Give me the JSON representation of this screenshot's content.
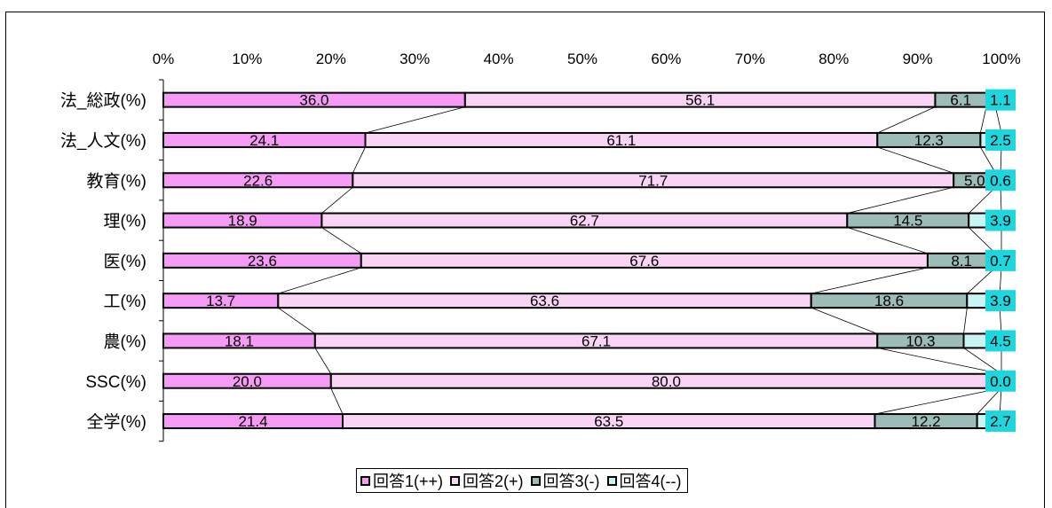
{
  "chart_data": {
    "type": "bar",
    "orientation": "horizontal",
    "stacked": "percent",
    "x_tick_labels": [
      "0%",
      "10%",
      "20%",
      "30%",
      "40%",
      "50%",
      "60%",
      "70%",
      "80%",
      "90%",
      "100%"
    ],
    "xlim": [
      0,
      100
    ],
    "categories": [
      "法_総政(%)",
      "法_人文(%)",
      "教育(%)",
      "理(%)",
      "医(%)",
      "工(%)",
      "農(%)",
      "SSC(%)",
      "全学(%)"
    ],
    "series": [
      {
        "name": "回答1(++)",
        "color": "#f59af5",
        "values": [
          36.0,
          24.1,
          22.6,
          18.9,
          23.6,
          13.7,
          18.1,
          20.0,
          21.4
        ],
        "labels": [
          "36.0",
          "24.1",
          "22.6",
          "18.9",
          "23.6",
          "13.7",
          "18.1",
          "20.0",
          "21.4"
        ]
      },
      {
        "name": "回答2(+)",
        "color": "#fad4f5",
        "values": [
          56.1,
          61.1,
          71.7,
          62.7,
          67.6,
          63.6,
          67.1,
          80.0,
          63.5
        ],
        "labels": [
          "56.1",
          "61.1",
          "71.7",
          "62.7",
          "67.6",
          "63.6",
          "67.1",
          "80.0",
          "63.5"
        ]
      },
      {
        "name": "回答3(-)",
        "color": "#9cbcb8",
        "values": [
          6.1,
          12.3,
          5.0,
          14.5,
          8.1,
          18.6,
          10.3,
          0.0,
          12.2
        ],
        "labels": [
          "6.1",
          "12.3",
          "5.0",
          "14.5",
          "8.1",
          "18.6",
          "10.3",
          "",
          "12.2"
        ]
      },
      {
        "name": "回答4(--)",
        "color": "#c8f4f4",
        "label_bg": "#1ed7de",
        "values": [
          1.1,
          2.5,
          0.6,
          3.9,
          0.7,
          3.9,
          4.5,
          0.0,
          2.7
        ],
        "labels": [
          "1.1",
          "2.5",
          "0.6",
          "3.9",
          "0.7",
          "3.9",
          "4.5",
          "0.0",
          "2.7"
        ]
      }
    ],
    "series_lines": true,
    "legend_position": "bottom"
  }
}
